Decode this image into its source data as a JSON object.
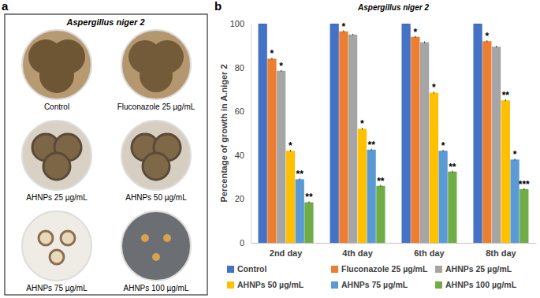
{
  "chart_data": {
    "type": "bar",
    "title": "Aspergillus niger 2",
    "annotations": [
      "b"
    ],
    "y_label": "Percentage of growth in A.niger 2",
    "categories": [
      "2nd day",
      "4th day",
      "6th day",
      "8th day"
    ],
    "series": [
      {
        "name": "Control",
        "color": "#4472c4",
        "values": [
          100,
          100,
          100,
          100
        ],
        "errors": [
          0.3,
          0.3,
          0.3,
          0.3
        ],
        "significance": [
          null,
          null,
          null,
          null
        ]
      },
      {
        "name": "Fluconazole 25 µg/mL",
        "color": "#ed7d31",
        "values": [
          84,
          96.5,
          94,
          92
        ],
        "errors": [
          0.4,
          0.4,
          0.4,
          0.4
        ],
        "significance": [
          "*",
          "*",
          "*",
          "*"
        ]
      },
      {
        "name": "AHNPs 25 µg/mL",
        "color": "#a5a5a5",
        "values": [
          78.5,
          95,
          91.5,
          89.5
        ],
        "errors": [
          0.4,
          0.4,
          0.4,
          0.4
        ],
        "significance": [
          "*",
          null,
          null,
          null
        ]
      },
      {
        "name": "AHNPs 50 µg/mL",
        "color": "#ffc000",
        "values": [
          42,
          52,
          68.5,
          65
        ],
        "errors": [
          0.4,
          0.4,
          0.4,
          0.4
        ],
        "significance": [
          "*",
          "*",
          "*",
          "**"
        ]
      },
      {
        "name": "AHNPs 75 µg/mL",
        "color": "#5b9bd5",
        "values": [
          29,
          42.5,
          42,
          38
        ],
        "errors": [
          0.4,
          0.4,
          0.4,
          0.4
        ],
        "significance": [
          "**",
          "**",
          "*",
          "*"
        ]
      },
      {
        "name": "AHNPs 100 µg/mL",
        "color": "#70ad47",
        "values": [
          18.5,
          26,
          32.5,
          24.5
        ],
        "errors": [
          0.4,
          0.4,
          0.4,
          0.4
        ],
        "significance": [
          "**",
          "**",
          "**",
          "***"
        ]
      }
    ],
    "ylim": [
      0,
      100
    ],
    "yticks": [
      0,
      20,
      40,
      60,
      80,
      100
    ],
    "grid": false,
    "legend": "bottom"
  },
  "panel_a": {
    "label": "a",
    "title": "Aspergillus niger 2",
    "plates": [
      "Control",
      "Fluconazole 25 µg/mL",
      "AHNPs 25 µg/mL",
      "AHNPs 50 µg/mL",
      "AHNPs 75 µg/mL",
      "AHNPs 100 µg/mL"
    ]
  }
}
